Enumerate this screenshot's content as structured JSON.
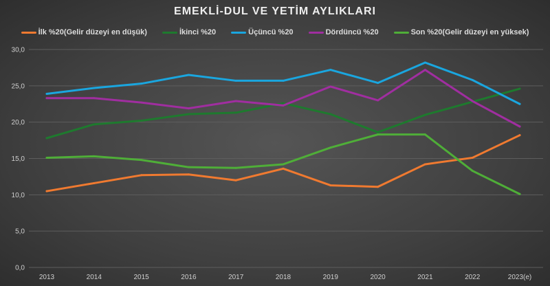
{
  "chart_data": {
    "type": "line",
    "title": "EMEKLİ-DUL VE YETİM AYLIKLARI",
    "categories": [
      "2013",
      "2014",
      "2015",
      "2016",
      "2017",
      "2018",
      "2019",
      "2020",
      "2021",
      "2022",
      "2023(e)"
    ],
    "ylim": [
      0,
      30
    ],
    "yticks": [
      "0,0",
      "5,0",
      "10,0",
      "15,0",
      "20,0",
      "25,0",
      "30,0"
    ],
    "grid": true,
    "legend": "top",
    "series": [
      {
        "name": "İlk %20(Gelir düzeyi en düşük)",
        "color": "#f07a30",
        "values": [
          10.5,
          11.6,
          12.7,
          12.8,
          12.0,
          13.6,
          11.3,
          11.1,
          14.2,
          15.1,
          18.2
        ]
      },
      {
        "name": "İkinci %20",
        "color": "#1e7a2e",
        "values": [
          17.8,
          19.7,
          20.2,
          21.1,
          21.3,
          22.6,
          21.1,
          18.6,
          21.0,
          22.8,
          24.6
        ]
      },
      {
        "name": "Üçüncü %20",
        "color": "#1aa6df",
        "values": [
          23.9,
          24.7,
          25.3,
          26.5,
          25.7,
          25.7,
          27.2,
          25.4,
          28.2,
          25.8,
          22.5
        ]
      },
      {
        "name": "Dördüncü %20",
        "color": "#a02ea0",
        "values": [
          23.3,
          23.3,
          22.7,
          21.9,
          22.9,
          22.3,
          24.9,
          23.0,
          27.2,
          22.9,
          19.4
        ]
      },
      {
        "name": "Son %20(Gelir düzeyi en yüksek)",
        "color": "#4fae38",
        "values": [
          15.1,
          15.3,
          14.8,
          13.8,
          13.7,
          14.2,
          16.5,
          18.3,
          18.3,
          13.3,
          10.1
        ]
      }
    ]
  }
}
